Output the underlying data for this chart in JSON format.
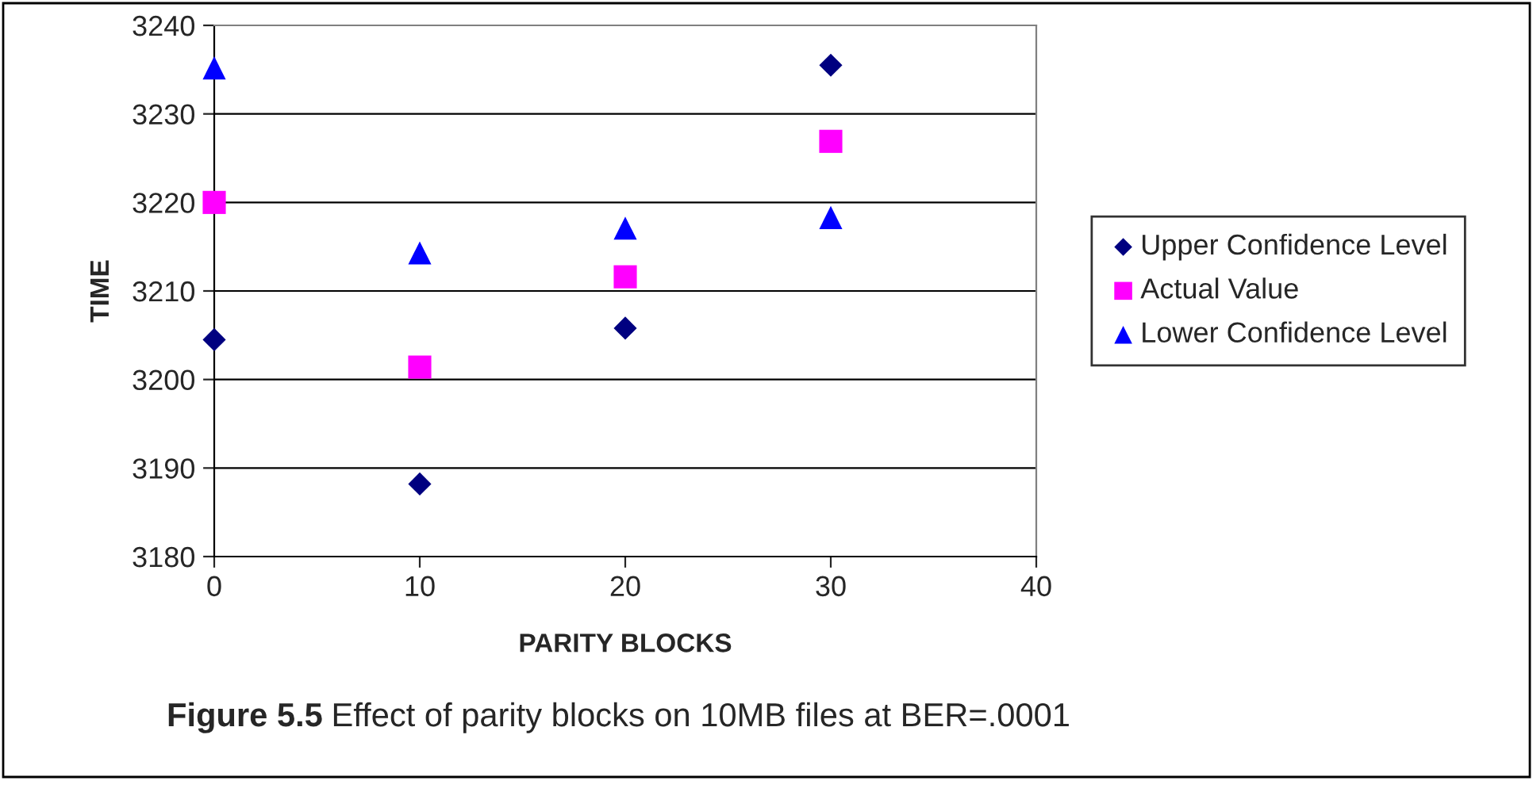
{
  "chart_data": {
    "type": "scatter",
    "xlabel": "PARITY BLOCKS",
    "ylabel": "TIME",
    "annotations": [
      "Figure 5.5",
      "Effect of parity blocks on 10MB files at BER=.0001"
    ],
    "x": [
      0,
      10,
      20,
      30
    ],
    "series": [
      {
        "name": "Upper Confidence Level",
        "color": "#000080",
        "marker": "diamond",
        "values": [
          3204.5,
          3188.2,
          3205.8,
          3235.5
        ]
      },
      {
        "name": "Actual Value",
        "color": "#ff00ff",
        "marker": "square",
        "values": [
          3220.0,
          3201.4,
          3211.6,
          3226.9
        ]
      },
      {
        "name": "Lower Confidence Level",
        "color": "#0000ff",
        "marker": "triangle",
        "values": [
          3235.2,
          3214.3,
          3217.1,
          3218.3
        ]
      }
    ],
    "xlim": [
      0,
      40
    ],
    "xticks": [
      0,
      10,
      20,
      30,
      40
    ],
    "ylim": [
      3180,
      3240
    ],
    "yticks": [
      3180,
      3190,
      3200,
      3210,
      3220,
      3230,
      3240
    ],
    "grid": "y",
    "legend": "right"
  }
}
